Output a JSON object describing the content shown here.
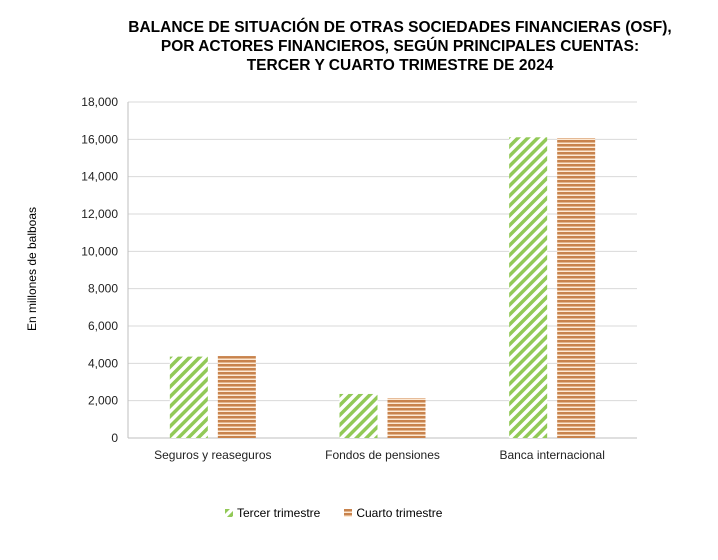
{
  "chart_data": {
    "type": "bar",
    "title": [
      "BALANCE DE SITUACIÓN DE OTRAS SOCIEDADES FINANCIERAS (OSF),",
      "POR ACTORES FINANCIEROS, SEGÚN PRINCIPALES CUENTAS:",
      "TERCER Y CUARTO TRIMESTRE DE 2024"
    ],
    "ylabel": "En millones de balboas",
    "xlabel": "",
    "ylim": [
      0,
      18000
    ],
    "yticks": [
      "0",
      "2,000",
      "4,000",
      "6,000",
      "8,000",
      "10,000",
      "12,000",
      "14,000",
      "16,000",
      "18,000"
    ],
    "categories": [
      "Seguros y reaseguros",
      "Fondos de pensiones",
      "Banca internacional"
    ],
    "series": [
      {
        "name": "Tercer trimestre",
        "values": [
          4360,
          2360,
          16110
        ],
        "color": "#92c957"
      },
      {
        "name": "Cuarto trimestre",
        "values": [
          4390,
          2140,
          16070
        ],
        "color": "#c8834d"
      }
    ],
    "grid": true,
    "legend": "bottom"
  }
}
